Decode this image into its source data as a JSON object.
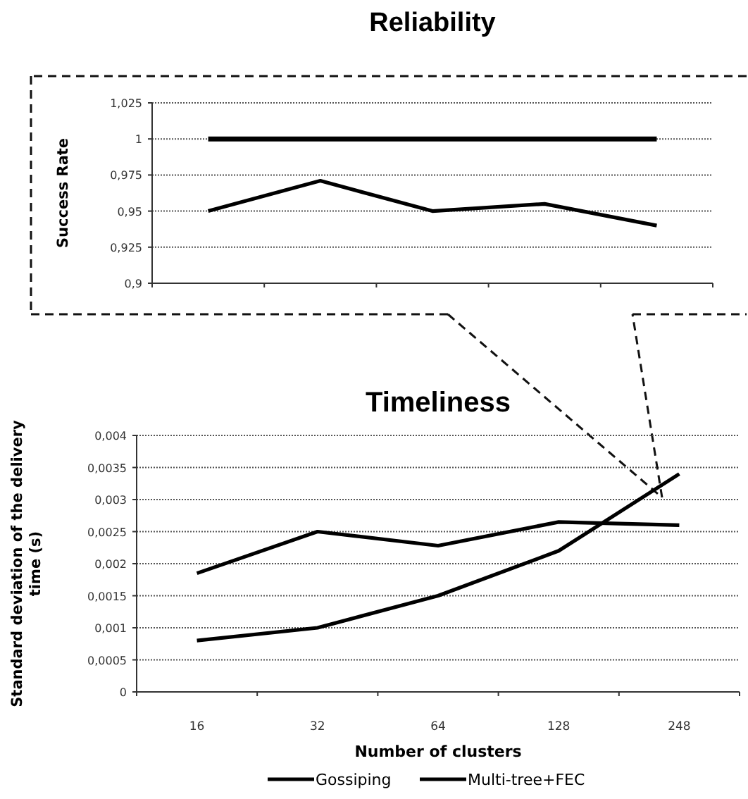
{
  "chart_data": [
    {
      "type": "line",
      "title": "Reliability",
      "ylabel": "Success Rate",
      "categories": [
        null,
        null,
        null,
        null,
        null
      ],
      "series": [
        {
          "color": "#000000",
          "values": [
            0.95,
            0.971,
            0.95,
            0.955,
            0.94
          ]
        },
        {
          "color": "#000000",
          "values": [
            1,
            1,
            1,
            1,
            1
          ]
        }
      ],
      "ylim": [
        0.9,
        1.025
      ],
      "yticks": [
        {
          "value": 0.9,
          "label": "0,9"
        },
        {
          "value": 0.925,
          "label": "0,925"
        },
        {
          "value": 0.95,
          "label": "0,95"
        },
        {
          "value": 0.975,
          "label": "0,975"
        },
        1,
        {
          "value": 1.025,
          "label": "1,025"
        }
      ],
      "grid": "y",
      "legend": false,
      "tick_labels": "y",
      "marker": "none",
      "line_style": "solid"
    },
    {
      "type": "line",
      "title": "Timeliness",
      "xlabel": "Number of clusters",
      "ylabel": "Standard deviation of the delivery time (s)",
      "categories": [
        "16",
        "32",
        "64",
        "128",
        "248"
      ],
      "series": [
        {
          "name": "Gossiping",
          "color": "#000000",
          "values": [
            0.00185,
            0.0025,
            0.00228,
            0.00265,
            0.0026
          ]
        },
        {
          "name": "Multi-tree+FEC",
          "color": "#000000",
          "values": [
            0.0008,
            0.001,
            0.0015,
            0.0022,
            0.0034
          ]
        }
      ],
      "ylim": [
        0,
        0.004
      ],
      "yticks": [
        0,
        {
          "value": 0.0005,
          "label": "0,0005"
        },
        {
          "value": 0.001,
          "label": "0,001"
        },
        {
          "value": 0.0015,
          "label": "0,0015"
        },
        {
          "value": 0.002,
          "label": "0,002"
        },
        {
          "value": 0.0025,
          "label": "0,0025"
        },
        {
          "value": 0.003,
          "label": "0,003"
        },
        {
          "value": 0.0035,
          "label": "0,0035"
        },
        {
          "value": 0.004,
          "label": "0,004"
        }
      ],
      "grid": "y",
      "legend": "bottom",
      "marker": "none",
      "line_style": "solid"
    }
  ]
}
